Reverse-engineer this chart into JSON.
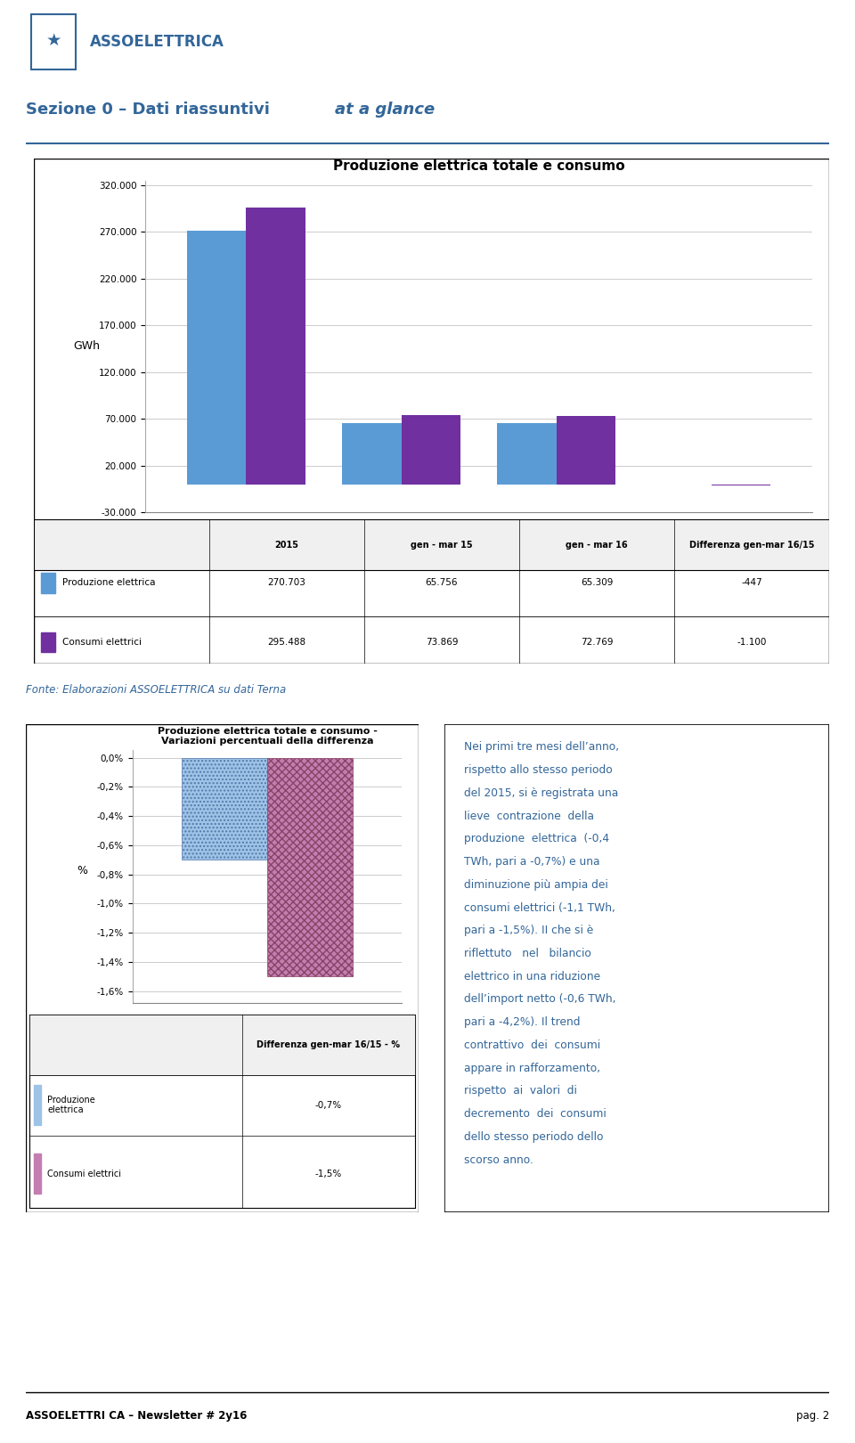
{
  "page_bg": "#FFFFFF",
  "header_color": "#336699",
  "title_color": "#336699",
  "assoelettrica_text": "ASSOELETTRICA",
  "section_title_normal": "Sezione 0 – Dati riassuntivi ",
  "section_title_italic": "at a glance",
  "chart1_title": "Produzione elettrica totale e consumo",
  "chart1_categories": [
    "2015",
    "gen - mar 15",
    "gen - mar 16",
    "Differenza gen-mar 16/15"
  ],
  "chart1_produzione": [
    270703,
    65756,
    65309,
    -447
  ],
  "chart1_consumi": [
    295488,
    73869,
    72769,
    -1100
  ],
  "chart1_ylabel": "GWh",
  "chart1_ylim": [
    -30000,
    325000
  ],
  "chart1_yticks": [
    -30000,
    20000,
    70000,
    120000,
    170000,
    220000,
    270000,
    320000
  ],
  "chart1_ytick_labels": [
    "-30.000",
    "20.000",
    "70.000",
    "120.000",
    "170.000",
    "220.000",
    "270.000",
    "320.000"
  ],
  "chart1_color_prod": "#5B9BD5",
  "chart1_color_cons": "#7030A0",
  "chart1_table_rows": [
    "Produzione elettrica",
    "Consumi elettrici"
  ],
  "chart1_col_vals_prod": [
    "270.703",
    "65.756",
    "65.309",
    "-447"
  ],
  "chart1_col_vals_cons": [
    "295.488",
    "73.869",
    "72.769",
    "-1.100"
  ],
  "fonte_text": "Fonte: Elaborazioni ASSOELETTRICA su dati Terna",
  "chart2_title_line1": "Produzione elettrica totale e consumo -",
  "chart2_title_line2": "Variazioni percentuali della differenza",
  "chart2_col_header": "Differenza gen-mar 16/15 - %",
  "chart2_prod_val": -0.007,
  "chart2_cons_val": -0.015,
  "chart2_ylabel": "%",
  "chart2_yticks": [
    0.0,
    -0.002,
    -0.004,
    -0.006,
    -0.008,
    -0.01,
    -0.012,
    -0.014,
    -0.016
  ],
  "chart2_ytick_labels": [
    "0,0%",
    "-0,2%",
    "-0,4%",
    "-0,6%",
    "-0,8%",
    "-1,0%",
    "-1,2%",
    "-1,4%",
    "-1,6%"
  ],
  "chart2_color_prod": "#9DC3E6",
  "chart2_color_cons": "#C47DB0",
  "chart2_table_prod": "-0,7%",
  "chart2_table_cons": "-1,5%",
  "chart2_legend_prod": "Produzione\nelettrica",
  "chart2_legend_cons": "Consumi elettrici",
  "text_panel_lines": [
    "Nei primi tre mesi dell’anno,",
    "rispetto allo stesso periodo",
    "del 2015, si è registrata una",
    "lieve  contrazione  della",
    "produzione  elettrica  (-0,4",
    "TWh, pari a -0,7%) e una",
    "diminuzione più ampia dei",
    "consumi elettrici (-1,1 TWh,",
    "pari a -1,5%). II che si è",
    "riflettuto   nel   bilancio",
    "elettrico in una riduzione",
    "dell’import netto (-0,6 TWh,",
    "pari a -4,2%). Il trend",
    "contrattivo  dei  consumi",
    "appare in rafforzamento,",
    "rispetto  ai  valori  di",
    "decremento  dei  consumi",
    "dello stesso periodo dello",
    "scorso anno."
  ],
  "footer_left": "ASSOELETTRI CA – Newsletter # 2y16",
  "footer_right": "pag. 2"
}
